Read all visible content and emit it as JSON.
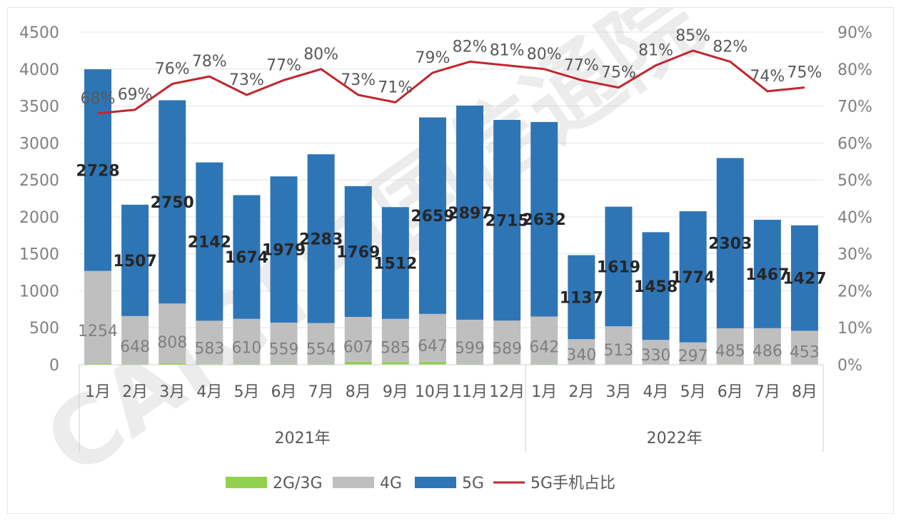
{
  "chart_data": {
    "type": "bar",
    "stacked": true,
    "categories": [
      "1月",
      "2月",
      "3月",
      "4月",
      "5月",
      "6月",
      "7月",
      "8月",
      "9月",
      "10月",
      "11月",
      "12月",
      "1月",
      "2月",
      "3月",
      "4月",
      "5月",
      "6月",
      "7月",
      "8月"
    ],
    "groups": [
      {
        "label": "2021年",
        "count": 12
      },
      {
        "label": "2022年",
        "count": 8
      }
    ],
    "series": [
      {
        "name": "2G/3G",
        "type": "bar",
        "color": "#92d050",
        "values": [
          15,
          10,
          20,
          12,
          10,
          10,
          10,
          40,
          35,
          40,
          10,
          8,
          10,
          5,
          6,
          5,
          5,
          8,
          8,
          6
        ]
      },
      {
        "name": "4G",
        "type": "bar",
        "color": "#bfbfbf",
        "values": [
          1254,
          648,
          808,
          583,
          610,
          559,
          554,
          607,
          585,
          647,
          599,
          589,
          642,
          340,
          513,
          330,
          297,
          485,
          486,
          453
        ]
      },
      {
        "name": "5G",
        "type": "bar",
        "color": "#2e75b6",
        "values": [
          2728,
          1507,
          2750,
          2142,
          1674,
          1979,
          2283,
          1769,
          1512,
          2659,
          2897,
          2715,
          2632,
          1137,
          1619,
          1458,
          1774,
          2303,
          1467,
          1427
        ]
      },
      {
        "name": "5G手机占比",
        "type": "line",
        "axis": "right",
        "color": "#c0272d",
        "values": [
          68,
          69,
          76,
          78,
          73,
          77,
          80,
          73,
          71,
          79,
          82,
          81,
          80,
          77,
          75,
          81,
          85,
          82,
          74,
          75
        ]
      }
    ],
    "labels_4g": [
      "1254",
      "648",
      "808",
      "583",
      "610",
      "559",
      "554",
      "607",
      "585",
      "647",
      "599",
      "589",
      "642",
      "340",
      "513",
      "330",
      "297",
      "485",
      "486",
      "453"
    ],
    "labels_5g": [
      "2728",
      "1507",
      "2750",
      "2142",
      "1674",
      "1979",
      "2283",
      "1769",
      "1512",
      "2659",
      "2897",
      "2715",
      "2632",
      "1137",
      "1619",
      "1458",
      "1774",
      "2303",
      "1467",
      "1427"
    ],
    "labels_pct": [
      "68%",
      "69%",
      "76%",
      "78%",
      "73%",
      "77%",
      "80%",
      "73%",
      "71%",
      "79%",
      "82%",
      "81%",
      "80%",
      "77%",
      "75%",
      "81%",
      "85%",
      "82%",
      "74%",
      "75%"
    ],
    "y_left": {
      "min": 0,
      "max": 4500,
      "ticks": [
        "0",
        "500",
        "1000",
        "1500",
        "2000",
        "2500",
        "3000",
        "3500",
        "4000",
        "4500"
      ]
    },
    "y_right": {
      "min": 0,
      "max": 90,
      "ticks": [
        "0%",
        "10%",
        "20%",
        "30%",
        "40%",
        "50%",
        "60%",
        "70%",
        "80%",
        "90%"
      ]
    },
    "grid": true,
    "legend_position": "bottom"
  },
  "watermark": {
    "text": "CAICT中国信通院"
  }
}
